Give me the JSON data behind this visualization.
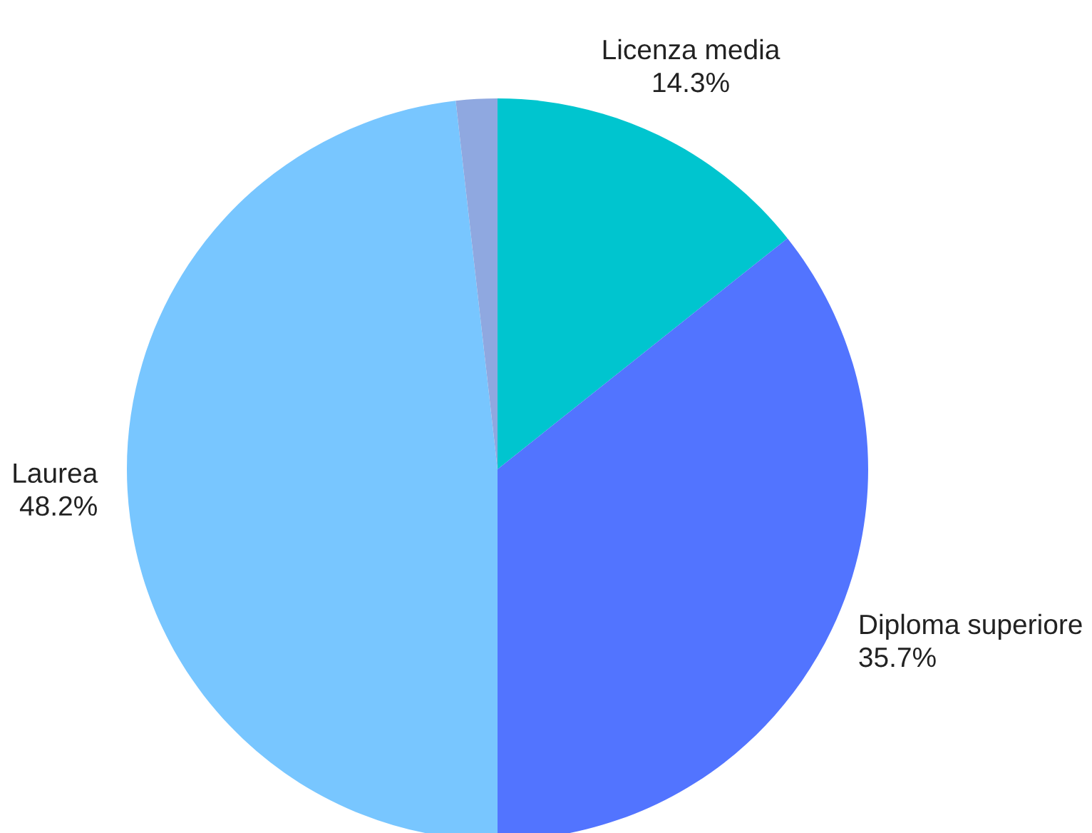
{
  "chart_data": {
    "type": "pie",
    "categories": [
      "Licenza media",
      "Diploma superiore",
      "Laurea",
      null
    ],
    "values": [
      14.3,
      35.7,
      48.2,
      1.8
    ],
    "value_labels": [
      "14.3%",
      "35.7%",
      "48.2%",
      null
    ],
    "colors": [
      "#00c5cf",
      "#5274ff",
      "#78c6ff",
      "#8fa8e0"
    ]
  }
}
